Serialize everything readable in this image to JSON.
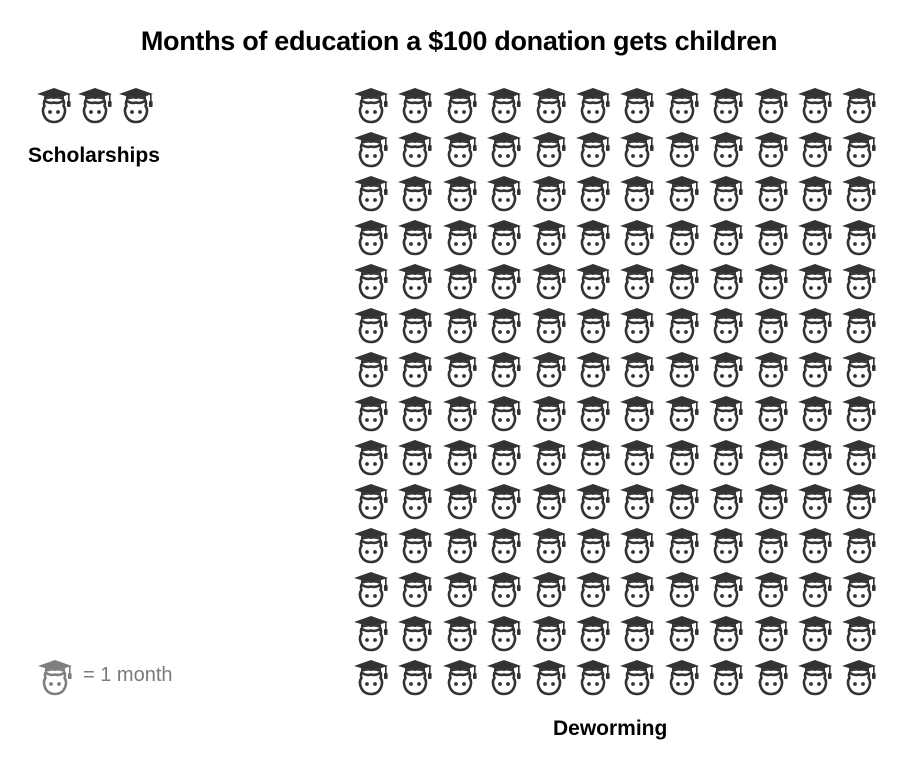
{
  "title": "Months of education a $100 donation gets children",
  "legend": {
    "icon": "graduate-head-icon",
    "text": "= 1 month",
    "color": "#7f7f7f"
  },
  "colors": {
    "icon": "#333333",
    "text": "#000000"
  },
  "groups": [
    {
      "label": "Scholarships",
      "count": 3,
      "columns": 3,
      "rows": 1
    },
    {
      "label": "Deworming",
      "count": 168,
      "columns": 12,
      "rows": 14
    }
  ],
  "chart_data": {
    "type": "bar",
    "subtype": "pictogram",
    "title": "Months of education a $100 donation gets children",
    "categories": [
      "Scholarships",
      "Deworming"
    ],
    "values": [
      3,
      168
    ],
    "unit": "months",
    "legend": "1 icon = 1 month",
    "xlabel": "",
    "ylabel": ""
  }
}
